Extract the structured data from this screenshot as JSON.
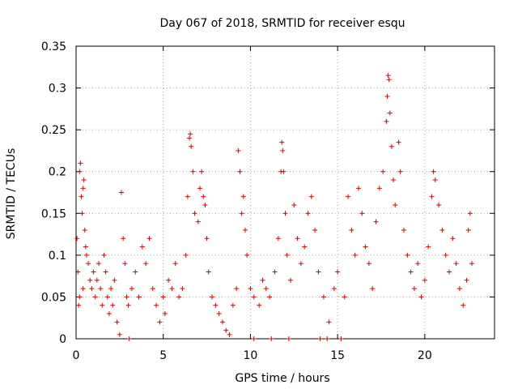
{
  "chart_data": {
    "type": "scatter",
    "title": "Day 067 of 2018, SRMTID for receiver esqu",
    "xlabel": "GPS time / hours",
    "ylabel": "SRMTID / TECUs",
    "xlim": [
      0,
      24
    ],
    "ylim": [
      0,
      0.35
    ],
    "xticks": [
      "0",
      "5",
      "10",
      "15",
      "20"
    ],
    "xtick_values": [
      0,
      5,
      10,
      15,
      20
    ],
    "yticks": [
      "0",
      "0.05",
      "0.1",
      "0.15",
      "0.2",
      "0.25",
      "0.3",
      "0.35"
    ],
    "ytick_values": [
      0,
      0.05,
      0.1,
      0.15,
      0.2,
      0.25,
      0.3,
      0.35
    ],
    "grid": true,
    "marker": "plus",
    "color": "#dd0000",
    "series": [
      {
        "name": "SRMTID",
        "points": [
          [
            0.05,
            0.12
          ],
          [
            0.1,
            0.08
          ],
          [
            0.2,
            0.2
          ],
          [
            0.25,
            0.21
          ],
          [
            0.3,
            0.17
          ],
          [
            0.35,
            0.15
          ],
          [
            0.4,
            0.18
          ],
          [
            0.45,
            0.19
          ],
          [
            0.5,
            0.13
          ],
          [
            0.55,
            0.11
          ],
          [
            0.6,
            0.1
          ],
          [
            0.2,
            0.05
          ],
          [
            0.15,
            0.04
          ],
          [
            0.4,
            0.06
          ],
          [
            0.7,
            0.09
          ],
          [
            0.8,
            0.07
          ],
          [
            0.9,
            0.06
          ],
          [
            1.0,
            0.08
          ],
          [
            1.1,
            0.05
          ],
          [
            1.2,
            0.07
          ],
          [
            1.3,
            0.09
          ],
          [
            1.4,
            0.06
          ],
          [
            1.5,
            0.04
          ],
          [
            1.6,
            0.1
          ],
          [
            1.7,
            0.08
          ],
          [
            1.8,
            0.05
          ],
          [
            1.9,
            0.03
          ],
          [
            2.0,
            0.06
          ],
          [
            2.1,
            0.04
          ],
          [
            2.2,
            0.07
          ],
          [
            2.35,
            0.02
          ],
          [
            2.5,
            0.005
          ],
          [
            2.6,
            0.175
          ],
          [
            2.7,
            0.12
          ],
          [
            2.8,
            0.09
          ],
          [
            2.9,
            0.05
          ],
          [
            3.0,
            0.04
          ],
          [
            3.05,
            0.0
          ],
          [
            3.2,
            0.06
          ],
          [
            3.4,
            0.08
          ],
          [
            3.6,
            0.05
          ],
          [
            3.8,
            0.11
          ],
          [
            4.0,
            0.09
          ],
          [
            4.2,
            0.12
          ],
          [
            4.4,
            0.06
          ],
          [
            4.6,
            0.04
          ],
          [
            4.8,
            0.02
          ],
          [
            5.0,
            0.05
          ],
          [
            5.1,
            0.03
          ],
          [
            5.3,
            0.07
          ],
          [
            5.5,
            0.06
          ],
          [
            5.7,
            0.09
          ],
          [
            5.9,
            0.05
          ],
          [
            6.1,
            0.06
          ],
          [
            6.3,
            0.1
          ],
          [
            6.4,
            0.17
          ],
          [
            6.5,
            0.24
          ],
          [
            6.55,
            0.245
          ],
          [
            6.6,
            0.23
          ],
          [
            6.7,
            0.2
          ],
          [
            6.8,
            0.15
          ],
          [
            7.0,
            0.14
          ],
          [
            7.1,
            0.18
          ],
          [
            7.2,
            0.2
          ],
          [
            7.3,
            0.17
          ],
          [
            7.4,
            0.16
          ],
          [
            7.5,
            0.12
          ],
          [
            7.6,
            0.08
          ],
          [
            7.8,
            0.05
          ],
          [
            8.0,
            0.04
          ],
          [
            8.2,
            0.03
          ],
          [
            8.4,
            0.02
          ],
          [
            8.6,
            0.01
          ],
          [
            8.8,
            0.005
          ],
          [
            9.0,
            0.04
          ],
          [
            9.2,
            0.06
          ],
          [
            9.3,
            0.225
          ],
          [
            9.4,
            0.2
          ],
          [
            9.5,
            0.15
          ],
          [
            9.6,
            0.17
          ],
          [
            9.7,
            0.13
          ],
          [
            9.8,
            0.1
          ],
          [
            10.0,
            0.06
          ],
          [
            10.2,
            0.05
          ],
          [
            10.2,
            0.0
          ],
          [
            10.5,
            0.04
          ],
          [
            10.7,
            0.07
          ],
          [
            10.9,
            0.06
          ],
          [
            11.1,
            0.05
          ],
          [
            11.2,
            0.0
          ],
          [
            11.4,
            0.08
          ],
          [
            11.6,
            0.12
          ],
          [
            11.75,
            0.2
          ],
          [
            11.8,
            0.235
          ],
          [
            11.85,
            0.225
          ],
          [
            11.9,
            0.2
          ],
          [
            12.0,
            0.15
          ],
          [
            12.1,
            0.1
          ],
          [
            12.2,
            0.0
          ],
          [
            12.3,
            0.07
          ],
          [
            12.5,
            0.16
          ],
          [
            12.7,
            0.12
          ],
          [
            12.9,
            0.09
          ],
          [
            13.1,
            0.11
          ],
          [
            13.3,
            0.15
          ],
          [
            13.5,
            0.17
          ],
          [
            13.7,
            0.13
          ],
          [
            13.9,
            0.08
          ],
          [
            14.0,
            0.0
          ],
          [
            14.2,
            0.05
          ],
          [
            14.4,
            0.0
          ],
          [
            14.5,
            0.02
          ],
          [
            14.8,
            0.06
          ],
          [
            15.0,
            0.08
          ],
          [
            15.2,
            0.0
          ],
          [
            15.4,
            0.05
          ],
          [
            15.6,
            0.17
          ],
          [
            15.8,
            0.13
          ],
          [
            16.0,
            0.1
          ],
          [
            16.2,
            0.18
          ],
          [
            16.4,
            0.15
          ],
          [
            16.6,
            0.11
          ],
          [
            16.8,
            0.09
          ],
          [
            17.0,
            0.06
          ],
          [
            17.2,
            0.14
          ],
          [
            17.4,
            0.18
          ],
          [
            17.6,
            0.2
          ],
          [
            17.8,
            0.26
          ],
          [
            17.85,
            0.29
          ],
          [
            17.9,
            0.315
          ],
          [
            17.95,
            0.31
          ],
          [
            18.0,
            0.27
          ],
          [
            18.1,
            0.23
          ],
          [
            18.2,
            0.19
          ],
          [
            18.3,
            0.16
          ],
          [
            18.5,
            0.235
          ],
          [
            18.6,
            0.2
          ],
          [
            18.8,
            0.13
          ],
          [
            19.0,
            0.1
          ],
          [
            19.2,
            0.08
          ],
          [
            19.4,
            0.06
          ],
          [
            19.6,
            0.09
          ],
          [
            19.8,
            0.05
          ],
          [
            20.0,
            0.07
          ],
          [
            20.2,
            0.11
          ],
          [
            20.4,
            0.17
          ],
          [
            20.5,
            0.2
          ],
          [
            20.6,
            0.19
          ],
          [
            20.8,
            0.16
          ],
          [
            21.0,
            0.13
          ],
          [
            21.2,
            0.1
          ],
          [
            21.4,
            0.08
          ],
          [
            21.6,
            0.12
          ],
          [
            21.8,
            0.09
          ],
          [
            22.0,
            0.06
          ],
          [
            22.2,
            0.04
          ],
          [
            22.4,
            0.07
          ],
          [
            22.5,
            0.13
          ],
          [
            22.6,
            0.15
          ],
          [
            22.7,
            0.09
          ]
        ]
      }
    ]
  }
}
